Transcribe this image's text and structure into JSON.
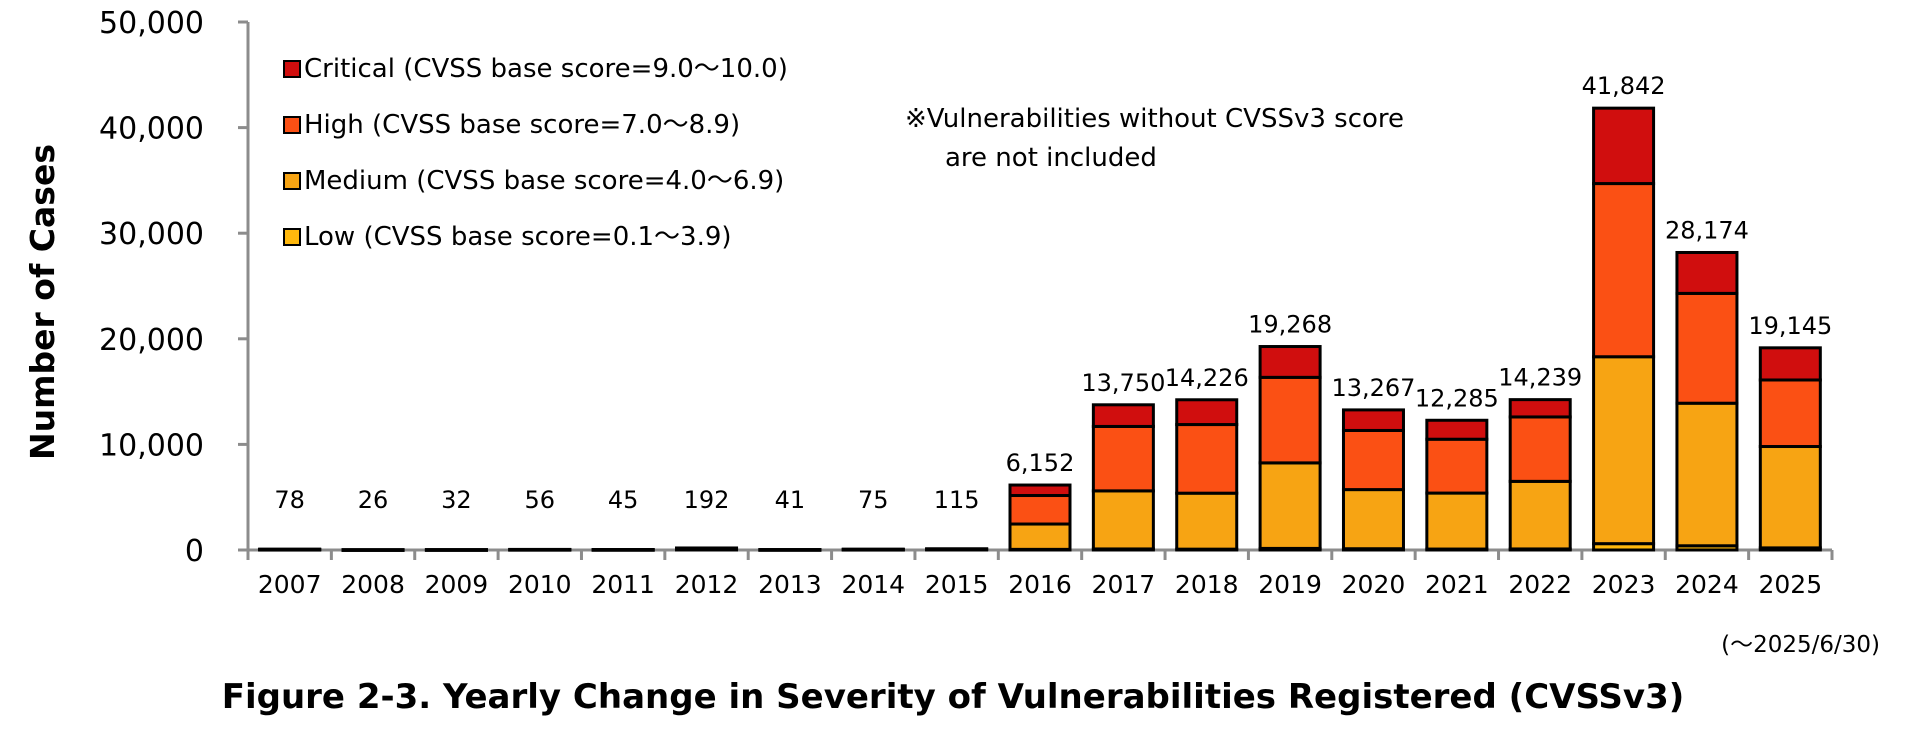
{
  "chart_data": {
    "type": "bar",
    "stacked": true,
    "title": "Figure 2-3. Yearly Change in Severity of Vulnerabilities Registered (CVSSv3)",
    "ylabel": "Number of Cases",
    "xlabel": "",
    "ylim": [
      0,
      50000
    ],
    "yticks": [
      "0",
      "10,000",
      "20,000",
      "30,000",
      "40,000",
      "50,000"
    ],
    "ytick_values": [
      0,
      10000,
      20000,
      30000,
      40000,
      50000
    ],
    "categories": [
      "2007",
      "2008",
      "2009",
      "2010",
      "2011",
      "2012",
      "2013",
      "2014",
      "2015",
      "2016",
      "2017",
      "2018",
      "2019",
      "2020",
      "2021",
      "2022",
      "2023",
      "2024",
      "2025"
    ],
    "series": [
      {
        "name": "Low (CVSS base score=0.1～3.9)",
        "color": "#ffb80d",
        "values": [
          0,
          0,
          0,
          0,
          0,
          0,
          0,
          0,
          0,
          60,
          100,
          80,
          150,
          120,
          90,
          100,
          600,
          400,
          200
        ]
      },
      {
        "name": "Medium (CVSS base score=4.0～6.9)",
        "color": "#f7a413",
        "values": [
          40,
          14,
          18,
          30,
          25,
          110,
          22,
          40,
          60,
          2400,
          5500,
          5300,
          8100,
          5600,
          5300,
          6400,
          17700,
          13500,
          9600
        ]
      },
      {
        "name": "High (CVSS base score=7.0～8.9)",
        "color": "#fb5014",
        "values": [
          25,
          8,
          9,
          17,
          14,
          57,
          13,
          25,
          40,
          2700,
          6100,
          6500,
          8100,
          5600,
          5100,
          6100,
          16400,
          10400,
          6300
        ]
      },
      {
        "name": "Critical (CVSS base score=9.0～10.0)",
        "color": "#d00e0e",
        "values": [
          13,
          4,
          5,
          9,
          6,
          25,
          6,
          10,
          15,
          992,
          2050,
          2346,
          2918,
          1947,
          1795,
          1639,
          7142,
          3874,
          3045
        ]
      }
    ],
    "totals": [
      "78",
      "26",
      "32",
      "56",
      "45",
      "192",
      "41",
      "75",
      "115",
      "6,152",
      "13,750",
      "14,226",
      "19,268",
      "13,267",
      "12,285",
      "14,239",
      "41,842",
      "28,174",
      "19,145"
    ],
    "legend_position": "top-left",
    "note_line1": "※Vulnerabilities without CVSSv3 score",
    "note_line2": "are not included",
    "period_note": "(～2025/6/30)",
    "grid": false
  }
}
